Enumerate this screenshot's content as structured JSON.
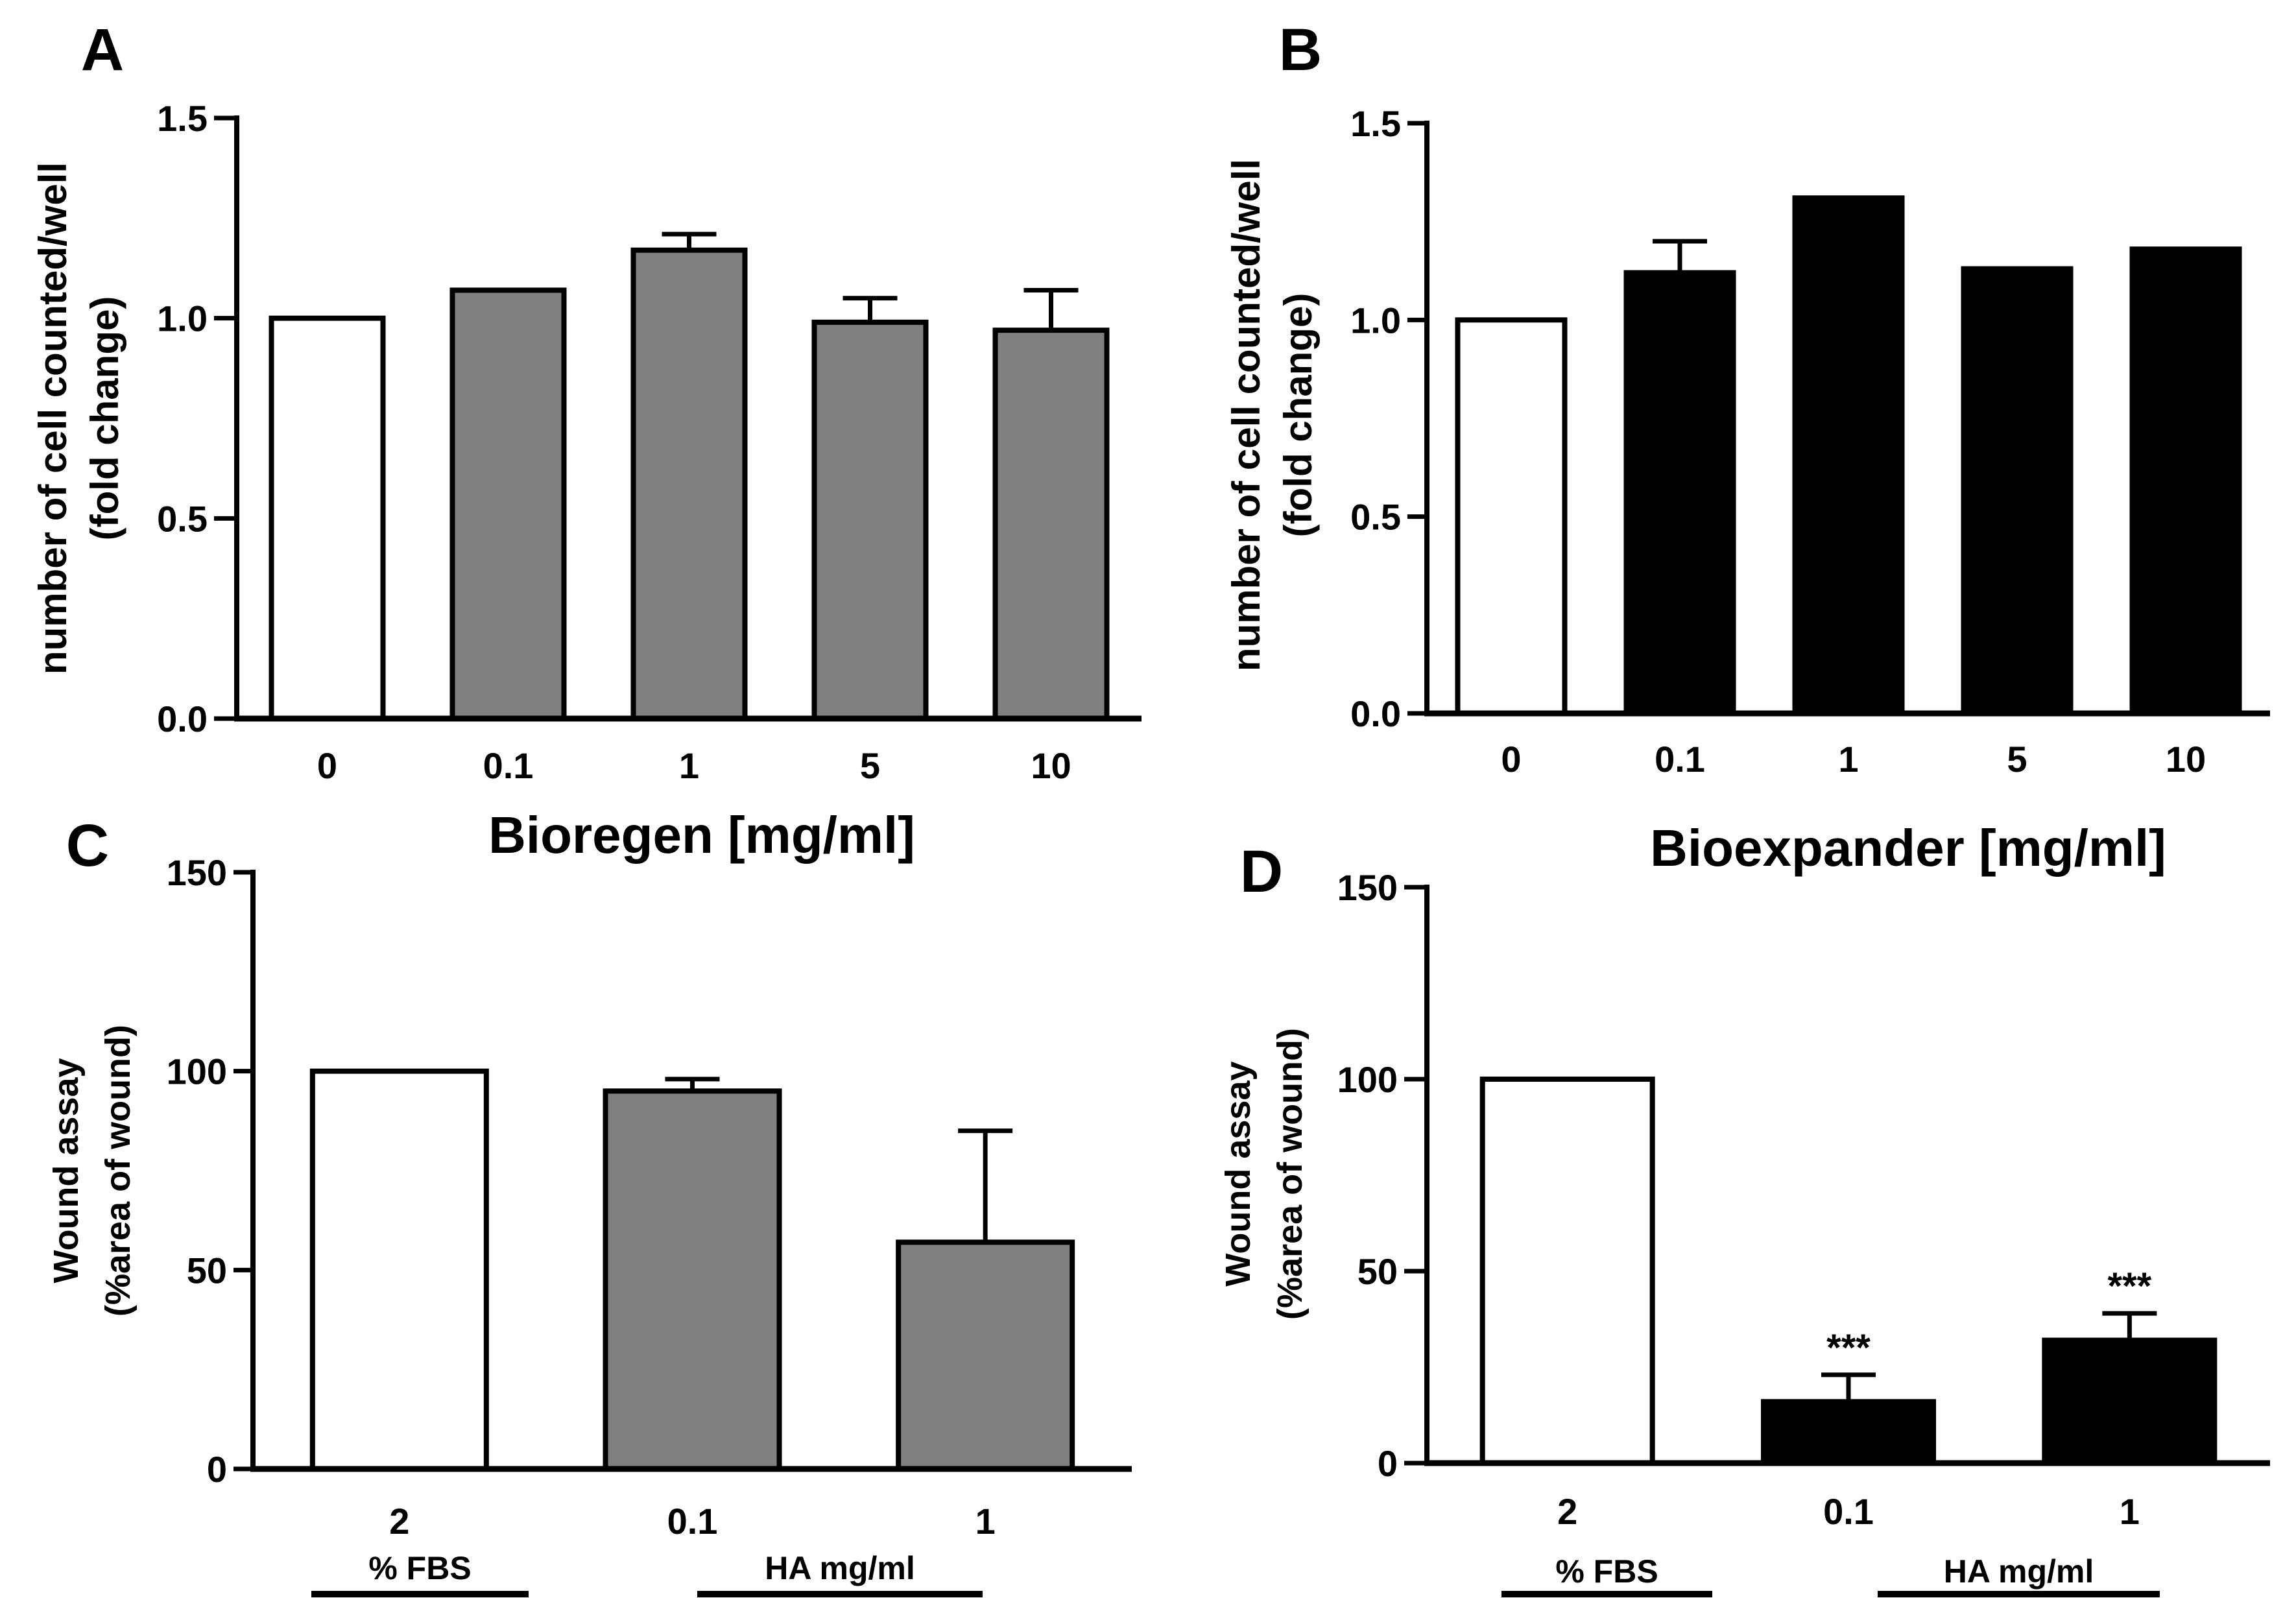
{
  "chart_data": [
    {
      "panel": "A",
      "type": "bar",
      "title": "",
      "xlabel": "Bioregen [mg/ml]",
      "ylabel": [
        "number of cell counted/well",
        "(fold change)"
      ],
      "categories": [
        "0",
        "0.1",
        "1",
        "5",
        "10"
      ],
      "values": [
        1.0,
        1.07,
        1.17,
        0.99,
        0.97
      ],
      "errors": [
        0,
        0.0,
        0.04,
        0.06,
        0.1
      ],
      "fills": [
        "#ffffff",
        "#808080",
        "#808080",
        "#808080",
        "#808080"
      ],
      "ylim": [
        0,
        1.5
      ],
      "yticks": [
        0.0,
        0.5,
        1.0,
        1.5
      ],
      "ytick_labels": [
        "0.0",
        "0.5",
        "1.0",
        "1.5"
      ]
    },
    {
      "panel": "B",
      "type": "bar",
      "title": "",
      "xlabel": "Bioexpander [mg/ml]",
      "ylabel": [
        "number of cell counted/well",
        "(fold change)"
      ],
      "categories": [
        "0",
        "0.1",
        "1",
        "5",
        "10"
      ],
      "values": [
        1.0,
        1.12,
        1.31,
        1.13,
        1.18
      ],
      "errors": [
        0,
        0.08,
        0.0,
        0,
        0.0
      ],
      "fills": [
        "#ffffff",
        "#000000",
        "#000000",
        "#000000",
        "#000000"
      ],
      "ylim": [
        0,
        1.5
      ],
      "yticks": [
        0.0,
        0.5,
        1.0,
        1.5
      ],
      "ytick_labels": [
        "0.0",
        "0.5",
        "1.0",
        "1.5"
      ]
    },
    {
      "panel": "C",
      "type": "bar",
      "title": "",
      "xlabel": "",
      "ylabel": [
        "Wound assay",
        "(%area of wound)"
      ],
      "categories": [
        "2",
        "0.1",
        "1"
      ],
      "values": [
        100,
        95,
        57
      ],
      "errors": [
        0,
        3,
        28
      ],
      "fills": [
        "#ffffff",
        "#808080",
        "#808080"
      ],
      "ylim": [
        0,
        150
      ],
      "yticks": [
        0,
        50,
        100,
        150
      ],
      "ytick_labels": [
        "0",
        "50",
        "100",
        "150"
      ],
      "groups": [
        "% FBS",
        "HA mg/ml"
      ]
    },
    {
      "panel": "D",
      "type": "bar",
      "title": "",
      "xlabel": "",
      "ylabel": [
        "Wound assay",
        "(%area of wound)"
      ],
      "categories": [
        "2",
        "0.1",
        "1"
      ],
      "values": [
        100,
        16,
        32
      ],
      "errors": [
        0,
        7,
        7
      ],
      "fills": [
        "#ffffff",
        "#000000",
        "#000000"
      ],
      "significance": [
        "",
        "***",
        "***"
      ],
      "ylim": [
        0,
        150
      ],
      "yticks": [
        0,
        50,
        100,
        150
      ],
      "ytick_labels": [
        "0",
        "50",
        "100",
        "150"
      ],
      "groups": [
        "% FBS",
        "HA mg/ml"
      ]
    }
  ]
}
